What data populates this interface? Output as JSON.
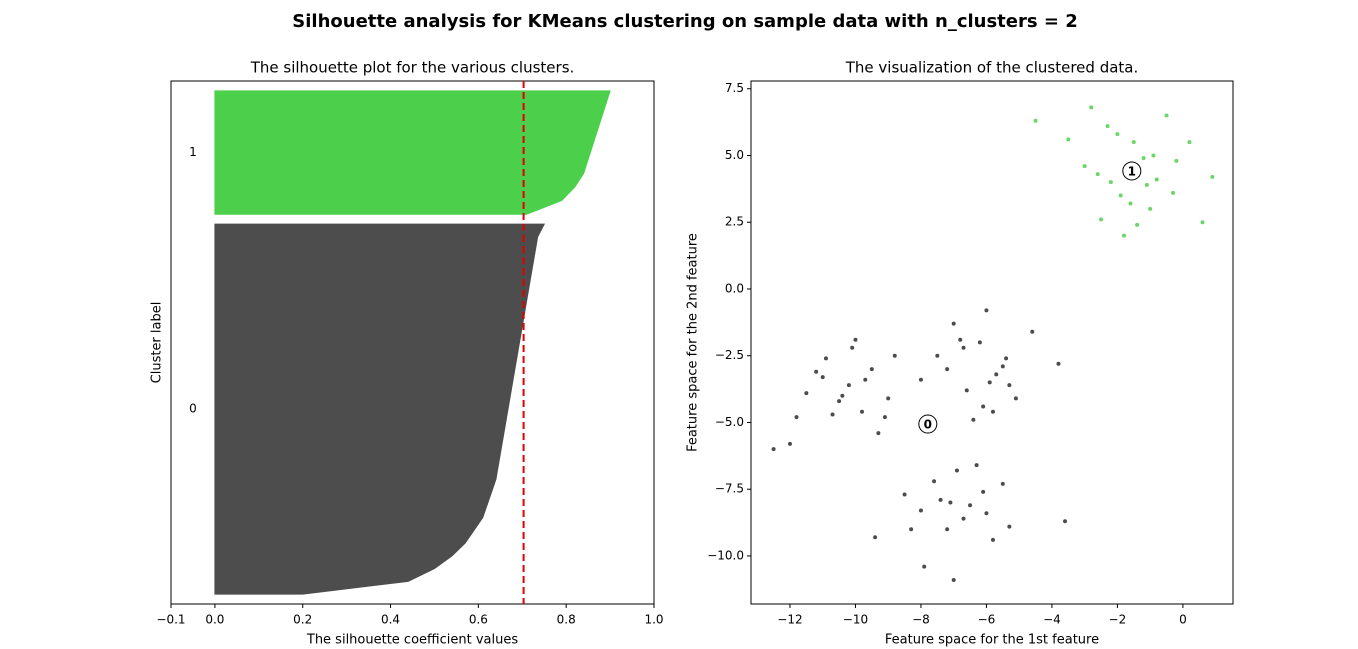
{
  "title": "Silhouette analysis for KMeans clustering on sample data with n_clusters = 2",
  "chart_data": [
    {
      "type": "silhouette",
      "title": "The silhouette plot for the various clusters.",
      "xlabel": "The silhouette coefficient values",
      "ylabel": "Cluster label",
      "xlim": [
        -0.1,
        1.0
      ],
      "xticks": [
        {
          "value": -0.1,
          "label": "−0.1"
        },
        {
          "value": 0,
          "label": "0.0"
        },
        0.2,
        0.4,
        0.6,
        0.8,
        {
          "value": 1.0,
          "label": "1.0"
        }
      ],
      "average": 0.703,
      "series": [
        {
          "name": "0",
          "color": "#4d4d4d",
          "values": [
            0.2,
            0.44,
            0.5,
            0.54,
            0.57,
            0.59,
            0.61,
            0.62,
            0.63,
            0.64,
            0.645,
            0.65,
            0.655,
            0.66,
            0.665,
            0.67,
            0.675,
            0.68,
            0.685,
            0.69,
            0.695,
            0.7,
            0.705,
            0.71,
            0.715,
            0.72,
            0.725,
            0.73,
            0.735,
            0.75
          ]
        },
        {
          "name": "1",
          "color": "#4cd04c",
          "values": [
            0.71,
            0.79,
            0.82,
            0.84,
            0.85,
            0.86,
            0.87,
            0.88,
            0.89,
            0.9
          ]
        }
      ]
    },
    {
      "type": "scatter",
      "title": "The visualization of the clustered data.",
      "xlabel": "Feature space for the 1st feature",
      "ylabel": "Feature space for the 2nd feature",
      "xlim": [
        -13.19,
        1.53
      ],
      "ylim": [
        -11.8,
        7.79
      ],
      "xticks": [
        {
          "value": -12,
          "label": "−12"
        },
        {
          "value": -10,
          "label": "−10"
        },
        {
          "value": -8,
          "label": "−8"
        },
        {
          "value": -6,
          "label": "−6"
        },
        {
          "value": -4,
          "label": "−4"
        },
        {
          "value": -2,
          "label": "−2"
        },
        0
      ],
      "yticks": [
        {
          "value": -10,
          "label": "−10.0"
        },
        {
          "value": -7.5,
          "label": "−7.5"
        },
        {
          "value": -5,
          "label": "−5.0"
        },
        {
          "value": -2.5,
          "label": "−2.5"
        },
        {
          "value": 0,
          "label": "0.0"
        },
        2.5,
        {
          "value": 5,
          "label": "5.0"
        },
        7.5
      ],
      "series": [
        {
          "name": "0",
          "color": "#000000",
          "center": [
            -7.79,
            -5.06
          ],
          "x": [
            -12.5,
            -11.8,
            -11.2,
            -10.9,
            -10.5,
            -10.2,
            -10.0,
            -9.8,
            -9.5,
            -9.3,
            -9.0,
            -8.8,
            -11.5,
            -10.7,
            -10.1,
            -9.7,
            -9.1,
            -12.0,
            -11.0,
            -10.4,
            -7.5,
            -7.0,
            -6.6,
            -6.2,
            -6.0,
            -5.7,
            -5.4,
            -5.1,
            -6.8,
            -6.4,
            -5.9,
            -7.2,
            -4.6,
            -5.5,
            -6.1,
            -3.8,
            -8.0,
            -5.3,
            -6.7,
            -5.8,
            -8.5,
            -8.0,
            -7.6,
            -7.2,
            -6.9,
            -6.5,
            -6.1,
            -5.8,
            -5.3,
            -7.9,
            -7.4,
            -6.7,
            -6.3,
            -8.3,
            -7.0,
            -6.0,
            -9.4,
            -7.1,
            -5.5,
            -3.6
          ],
          "y": [
            -6.0,
            -4.8,
            -3.1,
            -2.6,
            -4.2,
            -3.6,
            -1.9,
            -4.6,
            -3.0,
            -5.4,
            -4.1,
            -2.5,
            -3.9,
            -4.7,
            -2.2,
            -3.4,
            -4.8,
            -5.8,
            -3.3,
            -4.0,
            -2.5,
            -1.3,
            -3.8,
            -2.0,
            -0.8,
            -3.2,
            -2.6,
            -4.1,
            -1.9,
            -4.9,
            -3.5,
            -3.0,
            -1.6,
            -2.9,
            -4.4,
            -2.8,
            -3.4,
            -3.6,
            -2.2,
            -4.6,
            -7.7,
            -8.3,
            -7.2,
            -9.0,
            -6.8,
            -8.1,
            -7.6,
            -9.4,
            -8.9,
            -10.4,
            -7.9,
            -8.6,
            -6.6,
            -9.0,
            -10.9,
            -8.4,
            -9.3,
            -8.0,
            -7.3,
            -8.7
          ]
        },
        {
          "name": "1",
          "color": "#2cc52c",
          "center": [
            -1.56,
            4.42
          ],
          "x": [
            -1.5,
            -2.8,
            -0.5,
            -1.0,
            -2.2,
            -1.8,
            0.2,
            -3.5,
            -1.2,
            -0.8,
            -2.5,
            -1.9,
            -0.3,
            0.9,
            -4.5,
            -2.0,
            -1.6,
            -0.2,
            -3.0,
            -1.4,
            -2.6,
            -0.9,
            0.6,
            -1.1,
            -2.3
          ],
          "y": [
            5.5,
            6.8,
            6.5,
            3.0,
            4.0,
            2.0,
            5.5,
            5.6,
            4.9,
            4.1,
            2.6,
            3.5,
            3.6,
            4.2,
            6.3,
            5.8,
            3.2,
            4.8,
            4.6,
            2.4,
            4.3,
            5.0,
            2.5,
            3.9,
            6.1
          ]
        }
      ]
    }
  ]
}
